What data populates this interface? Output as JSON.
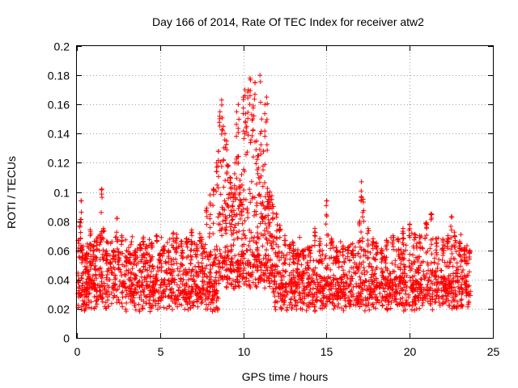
{
  "chart_data": {
    "type": "scatter",
    "title": "Day 166 of 2014, Rate Of TEC Index for receiver atw2",
    "xlabel": "GPS time / hours",
    "ylabel": "ROTI / TECUs",
    "xlim": [
      0,
      25
    ],
    "ylim": [
      0,
      0.2
    ],
    "xticks": [
      "0",
      "5",
      "10",
      "15",
      "20",
      "25"
    ],
    "yticks": [
      "0",
      "0.02",
      "0.04",
      "0.06",
      "0.08",
      "0.1",
      "0.12",
      "0.14",
      "0.16",
      "0.18",
      "0.2"
    ],
    "grid": true,
    "marker": "+",
    "color": "#ff0000",
    "series": [
      {
        "name": "ROTI",
        "x": [
          0.1,
          0.2,
          0.25,
          0.3,
          0.5,
          0.6,
          0.8,
          1.0,
          1.2,
          1.4,
          1.5,
          1.6,
          1.8,
          2.0,
          2.2,
          2.4,
          2.5,
          2.7,
          3.0,
          3.2,
          3.5,
          3.8,
          4.0,
          4.2,
          4.5,
          4.8,
          5.0,
          5.2,
          5.5,
          5.8,
          6.0,
          6.3,
          6.6,
          6.9,
          7.2,
          7.5,
          7.8,
          8.0,
          8.2,
          8.4,
          8.5,
          8.6,
          8.7,
          8.8,
          8.9,
          9.0,
          9.1,
          9.2,
          9.3,
          9.4,
          9.5,
          9.6,
          9.7,
          9.8,
          9.9,
          10.0,
          10.1,
          10.2,
          10.3,
          10.4,
          10.5,
          10.6,
          10.7,
          10.8,
          10.9,
          11.0,
          11.1,
          11.2,
          11.3,
          11.4,
          11.5,
          11.6,
          11.8,
          12.0,
          12.2,
          12.5,
          12.8,
          13.0,
          13.3,
          13.6,
          14.0,
          14.3,
          14.6,
          15.0,
          15.3,
          15.6,
          16.0,
          16.3,
          16.6,
          17.0,
          17.1,
          17.2,
          17.5,
          17.8,
          18.0,
          18.3,
          18.6,
          19.0,
          19.3,
          19.6,
          20.0,
          20.3,
          20.6,
          21.0,
          21.3,
          21.6,
          22.0,
          22.3,
          22.5,
          22.7,
          23.0,
          23.3,
          23.6
        ],
        "y": [
          0.067,
          0.081,
          0.094,
          0.062,
          0.055,
          0.058,
          0.074,
          0.063,
          0.068,
          0.071,
          0.102,
          0.075,
          0.058,
          0.052,
          0.06,
          0.082,
          0.059,
          0.07,
          0.055,
          0.058,
          0.06,
          0.064,
          0.069,
          0.063,
          0.065,
          0.07,
          0.058,
          0.062,
          0.06,
          0.072,
          0.071,
          0.066,
          0.068,
          0.074,
          0.064,
          0.069,
          0.089,
          0.098,
          0.102,
          0.12,
          0.128,
          0.155,
          0.163,
          0.145,
          0.14,
          0.135,
          0.118,
          0.11,
          0.103,
          0.098,
          0.12,
          0.155,
          0.16,
          0.108,
          0.112,
          0.165,
          0.17,
          0.145,
          0.17,
          0.178,
          0.153,
          0.159,
          0.175,
          0.135,
          0.125,
          0.18,
          0.15,
          0.128,
          0.16,
          0.165,
          0.095,
          0.1,
          0.09,
          0.085,
          0.077,
          0.07,
          0.064,
          0.065,
          0.058,
          0.06,
          0.062,
          0.075,
          0.068,
          0.094,
          0.068,
          0.06,
          0.063,
          0.062,
          0.06,
          0.08,
          0.107,
          0.095,
          0.075,
          0.068,
          0.065,
          0.061,
          0.067,
          0.07,
          0.068,
          0.075,
          0.078,
          0.071,
          0.07,
          0.079,
          0.085,
          0.068,
          0.067,
          0.07,
          0.083,
          0.07,
          0.066,
          0.062,
          0.06
        ]
      }
    ]
  }
}
